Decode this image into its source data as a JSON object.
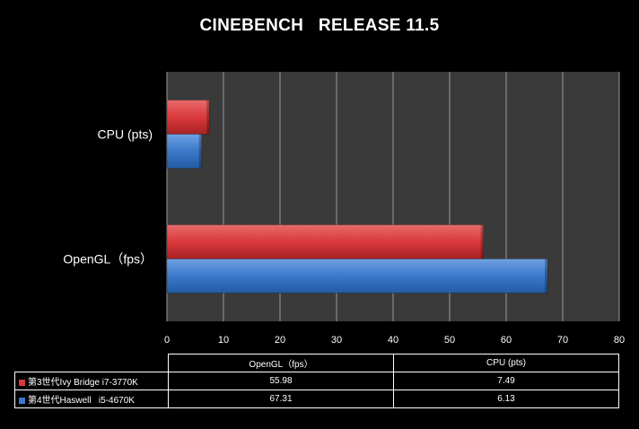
{
  "chart_data": {
    "type": "bar",
    "orientation": "horizontal",
    "title": "CINEBENCH   RELEASE 11.5",
    "categories": [
      "CPU (pts)",
      "OpenGL（fps）"
    ],
    "series": [
      {
        "name": "第3世代Ivy Bridge i7-3770K",
        "values": [
          7.49,
          55.98
        ],
        "color": "#d9393b"
      },
      {
        "name": "第4世代Haswell   i5-4670K",
        "values": [
          6.13,
          67.31
        ],
        "color": "#3a78c9"
      }
    ],
    "xlim": [
      0,
      80
    ],
    "xticks": [
      0,
      10,
      20,
      30,
      40,
      50,
      60,
      70,
      80
    ],
    "grid": true,
    "legend": "data-table"
  },
  "table": {
    "headers": [
      "OpenGL（fps）",
      "CPU (pts)"
    ],
    "rows": [
      {
        "label": "第3世代Ivy Bridge i7-3770K",
        "values": [
          "55.98",
          "7.49"
        ]
      },
      {
        "label": "第4世代Haswell   i5-4670K",
        "values": [
          "67.31",
          "6.13"
        ]
      }
    ]
  }
}
